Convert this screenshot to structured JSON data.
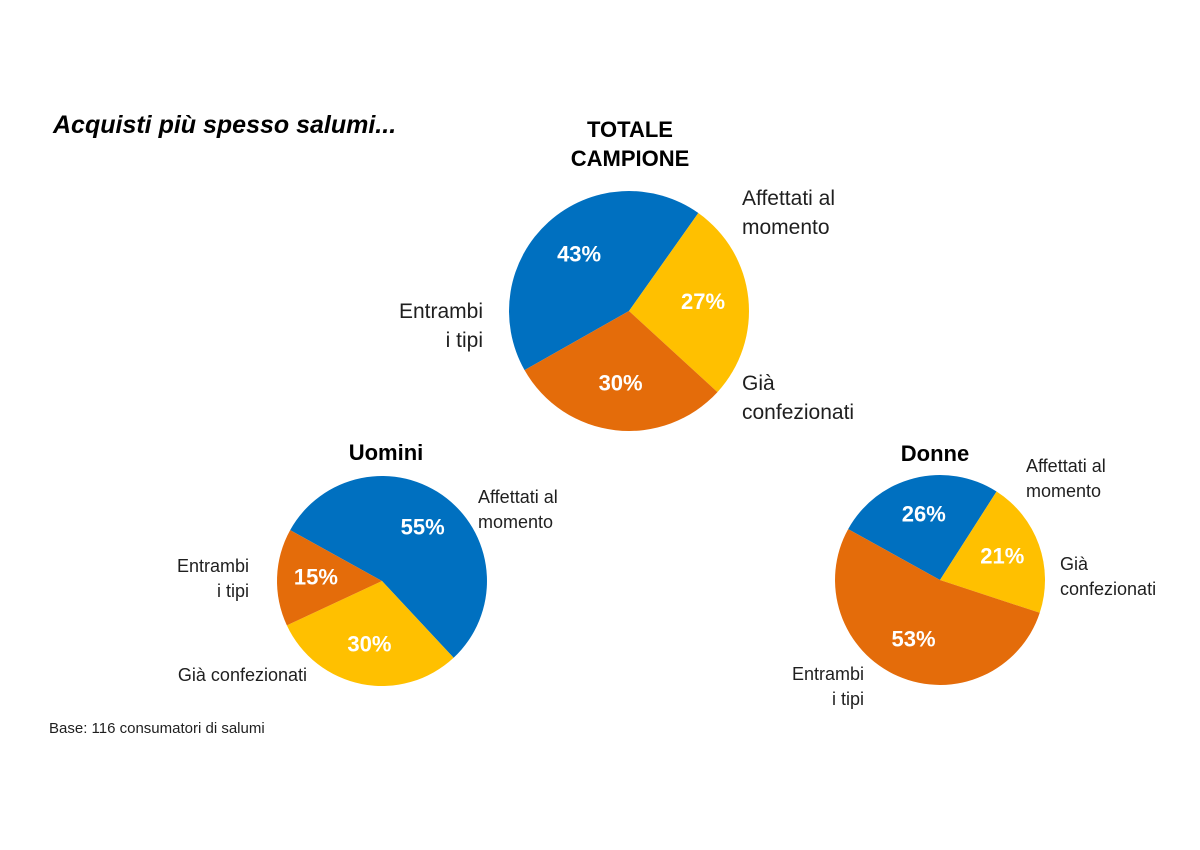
{
  "headline": "Acquisti più spesso salumi...",
  "footnote": "Base: 116 consumatori di salumi",
  "colors": {
    "affettati": "#0070C0",
    "confezionati": "#FFC000",
    "entrambi": "#E46C0A"
  },
  "chart_data": [
    {
      "type": "pie",
      "title": [
        "TOTALE",
        "CAMPIONE"
      ],
      "slices": [
        {
          "key": "affettati",
          "label": [
            "Affettati al",
            "momento"
          ],
          "value": 43,
          "pct_label": "43%"
        },
        {
          "key": "confezionati",
          "label": [
            "Già",
            "confezionati"
          ],
          "value": 27,
          "pct_label": "27%"
        },
        {
          "key": "entrambi",
          "label": [
            "Entrambi",
            "i tipi"
          ],
          "value": 30,
          "pct_label": "30%"
        }
      ]
    },
    {
      "type": "pie",
      "title": [
        "Uomini"
      ],
      "slices": [
        {
          "key": "affettati",
          "label": [
            "Affettati al",
            "momento"
          ],
          "value": 55,
          "pct_label": "55%"
        },
        {
          "key": "confezionati",
          "label": [
            "Già confezionati"
          ],
          "value": 30,
          "pct_label": "30%"
        },
        {
          "key": "entrambi",
          "label": [
            "Entrambi",
            "i tipi"
          ],
          "value": 15,
          "pct_label": "15%"
        }
      ]
    },
    {
      "type": "pie",
      "title": [
        "Donne"
      ],
      "slices": [
        {
          "key": "affettati",
          "label": [
            "Affettati al",
            "momento"
          ],
          "value": 26,
          "pct_label": "26%"
        },
        {
          "key": "confezionati",
          "label": [
            "Già",
            "confezionati"
          ],
          "value": 21,
          "pct_label": "21%"
        },
        {
          "key": "entrambi",
          "label": [
            "Entrambi",
            "i tipi"
          ],
          "value": 53,
          "pct_label": "53%"
        }
      ]
    }
  ]
}
